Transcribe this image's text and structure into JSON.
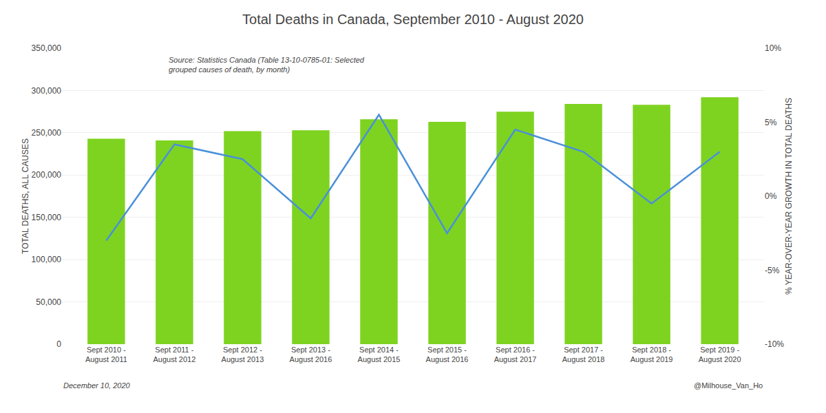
{
  "chart_data": {
    "type": "bar",
    "title": "Total Deaths in Canada, September 2010 - August 2020",
    "categories": [
      "Sept 2010 -\nAugust 2011",
      "Sept 2011 -\nAugust 2012",
      "Sept 2012 -\nAugust 2013",
      "Sept 2013 -\nAugust 2016",
      "Sept 2014 -\nAugust 2015",
      "Sept 2015 -\nAugust 2016",
      "Sept 2016 -\nAugust 2017",
      "Sept 2017 -\nAugust 2018",
      "Sept 2018 -\nAugust 2019",
      "Sept 2019 -\nAugust 2020"
    ],
    "series": [
      {
        "type": "bar",
        "color": "#7ED321",
        "values": [
          243000,
          241000,
          252000,
          253000,
          266000,
          263000,
          275000,
          284000,
          283000,
          292000
        ]
      },
      {
        "type": "line",
        "color": "#4A90D9",
        "axis": "y2",
        "values": [
          -3.0,
          3.5,
          2.5,
          -1.5,
          5.5,
          -2.5,
          4.5,
          3.0,
          -0.5,
          3.0
        ]
      }
    ],
    "ylabel": "TOTAL DEATHS, ALL CAUSES",
    "y2label": "% YEAR-OVER-YEAR GROWTH IN TOTAL DEATHS",
    "ylim": [
      0,
      350000
    ],
    "yticks": [
      0,
      {
        "value": 50000,
        "label": "50,000"
      },
      {
        "value": 100000,
        "label": "100,000"
      },
      {
        "value": 150000,
        "label": "150,000"
      },
      {
        "value": 200000,
        "label": "200,000"
      },
      {
        "value": 250000,
        "label": "250,000"
      },
      {
        "value": 300000,
        "label": "300,000"
      },
      {
        "value": 350000,
        "label": "350,000"
      }
    ],
    "y2lim": [
      -10,
      10
    ],
    "y2ticks": [
      {
        "value": -10,
        "label": "-10%"
      },
      {
        "value": -5,
        "label": "-5%"
      },
      {
        "value": 0,
        "label": "0%"
      },
      {
        "value": 5,
        "label": "5%"
      },
      {
        "value": 10,
        "label": "10%"
      }
    ],
    "grid": true,
    "annotations": [
      "Source: Statistics Canada (Table 13-10-0785-01: Selected\ngrouped causes of death, by month)",
      "December 10, 2020",
      "@Milhouse_Van_Ho"
    ]
  }
}
